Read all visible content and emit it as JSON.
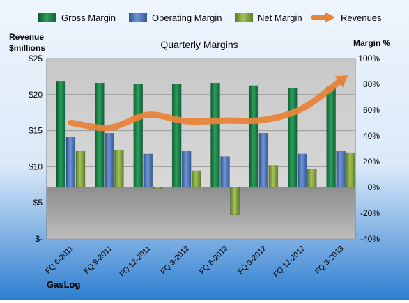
{
  "chart_data": {
    "type": "bar",
    "title": "Quarterly Margins",
    "left_axis_label_line1": "Revenue",
    "left_axis_label_line2": "$millions",
    "right_axis_label": "Margin %",
    "footer_label": "GasLog",
    "categories": [
      "FQ 6-2011",
      "FQ 9-2011",
      "FQ 12-2011",
      "FQ 3-2012",
      "FQ 6-2012",
      "FQ 9-2012",
      "FQ 12-2012",
      "FQ 3-2013"
    ],
    "left_axis": {
      "ylim": [
        0,
        25
      ],
      "ticks": [
        0,
        5,
        10,
        15,
        20,
        25
      ],
      "tick_labels": [
        "$-",
        "$5",
        "$10",
        "$15",
        "$20",
        "$25"
      ]
    },
    "right_axis": {
      "ylim": [
        -40,
        100
      ],
      "ticks": [
        -40,
        -20,
        0,
        20,
        40,
        60,
        80,
        100
      ],
      "tick_labels": [
        "-40%",
        "-20%",
        "0%",
        "20%",
        "40%",
        "60%",
        "80%",
        "100%"
      ]
    },
    "series": [
      {
        "name": "Gross Margin",
        "type": "bar",
        "axis": "right",
        "color": "#1e7a45",
        "values": [
          82,
          81,
          80,
          80,
          81,
          79,
          77,
          78
        ]
      },
      {
        "name": "Operating Margin",
        "type": "bar",
        "axis": "right",
        "color": "#4a72b0",
        "values": [
          39,
          42,
          26,
          28,
          24,
          42,
          26,
          28
        ]
      },
      {
        "name": "Net Margin",
        "type": "bar",
        "axis": "right",
        "color": "#7a9a3a",
        "values": [
          28,
          29,
          -1,
          13,
          -21,
          17,
          14,
          27
        ]
      },
      {
        "name": "Revenues",
        "type": "line",
        "axis": "left",
        "color": "#e8843a",
        "values": [
          16.1,
          15.4,
          17.2,
          16.3,
          16.4,
          16.5,
          18.1,
          22.0
        ]
      }
    ],
    "grid": true,
    "legend_position": "top"
  }
}
